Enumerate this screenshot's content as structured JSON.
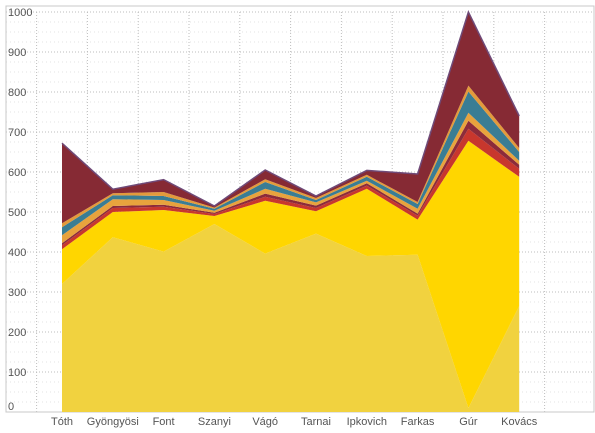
{
  "chart_data": {
    "type": "area",
    "stacked": true,
    "categories": [
      "Tóth",
      "Gyöngyösi",
      "Font",
      "Szanyi",
      "Vágó",
      "Tarnai",
      "Ipkovich",
      "Farkas",
      "Gúr",
      "Kovács"
    ],
    "ylim": [
      0,
      1000
    ],
    "yticks": [
      0,
      100,
      200,
      300,
      400,
      500,
      600,
      700,
      800,
      900,
      1000
    ],
    "grid": "dotted",
    "series": [
      {
        "values": [
          320,
          437,
          401,
          470,
          396,
          446,
          390,
          393,
          10,
          265
        ],
        "color": "#F1D23F"
      },
      {
        "values": [
          87,
          63,
          104,
          20,
          132,
          56,
          168,
          88,
          668,
          323
        ],
        "color": "#FFD600"
      },
      {
        "values": [
          10,
          10,
          8,
          5,
          10,
          8,
          8,
          10,
          30,
          20
        ],
        "color": "#C8372D"
      },
      {
        "values": [
          5,
          5,
          5,
          3,
          8,
          6,
          6,
          5,
          20,
          10
        ],
        "color": "#8C2B3A"
      },
      {
        "values": [
          20,
          17,
          12,
          5,
          12,
          8,
          6,
          12,
          20,
          10
        ],
        "color": "#E8A33D"
      },
      {
        "values": [
          20,
          10,
          10,
          5,
          17,
          6,
          10,
          12,
          53,
          22
        ],
        "color": "#3A7D94"
      },
      {
        "values": [
          10,
          5,
          10,
          3,
          7,
          5,
          5,
          5,
          15,
          10
        ],
        "color": "#E39A3B"
      },
      {
        "values": [
          200,
          10,
          31,
          4,
          23,
          5,
          11,
          70,
          184,
          80
        ],
        "color": "#862A34"
      }
    ]
  }
}
